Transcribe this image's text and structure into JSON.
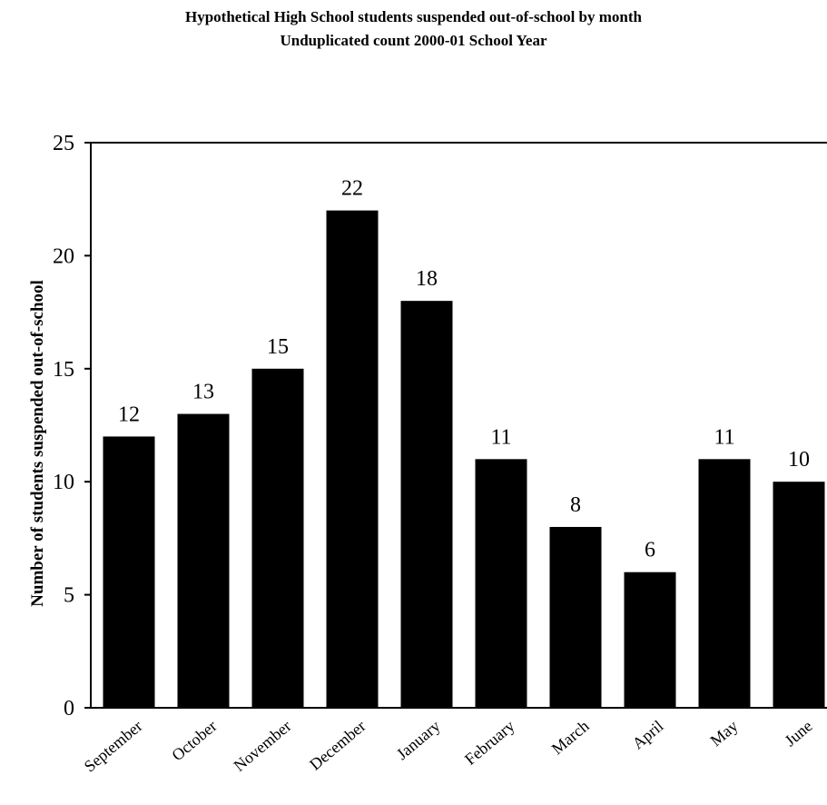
{
  "chart_data": {
    "type": "bar",
    "title": "Hypothetical High School students suspended out-of-school by month",
    "subtitle": "Unduplicated count 2000-01 School Year",
    "xlabel": "",
    "ylabel": "Number of students suspended out-of-school",
    "categories": [
      "September",
      "October",
      "November",
      "December",
      "January",
      "February",
      "March",
      "April",
      "May",
      "June"
    ],
    "values": [
      12,
      13,
      15,
      22,
      18,
      11,
      8,
      6,
      11,
      10
    ],
    "data_labels": [
      "12",
      "13",
      "15",
      "22",
      "18",
      "11",
      "8",
      "6",
      "11",
      "10"
    ],
    "ylim": [
      0,
      25
    ],
    "yticks": [
      0,
      5,
      10,
      15,
      20,
      25
    ],
    "ytick_labels": [
      "0",
      "5",
      "10",
      "15",
      "20",
      "25"
    ],
    "grid": false,
    "legend": "none",
    "bar_color": "#000000"
  }
}
